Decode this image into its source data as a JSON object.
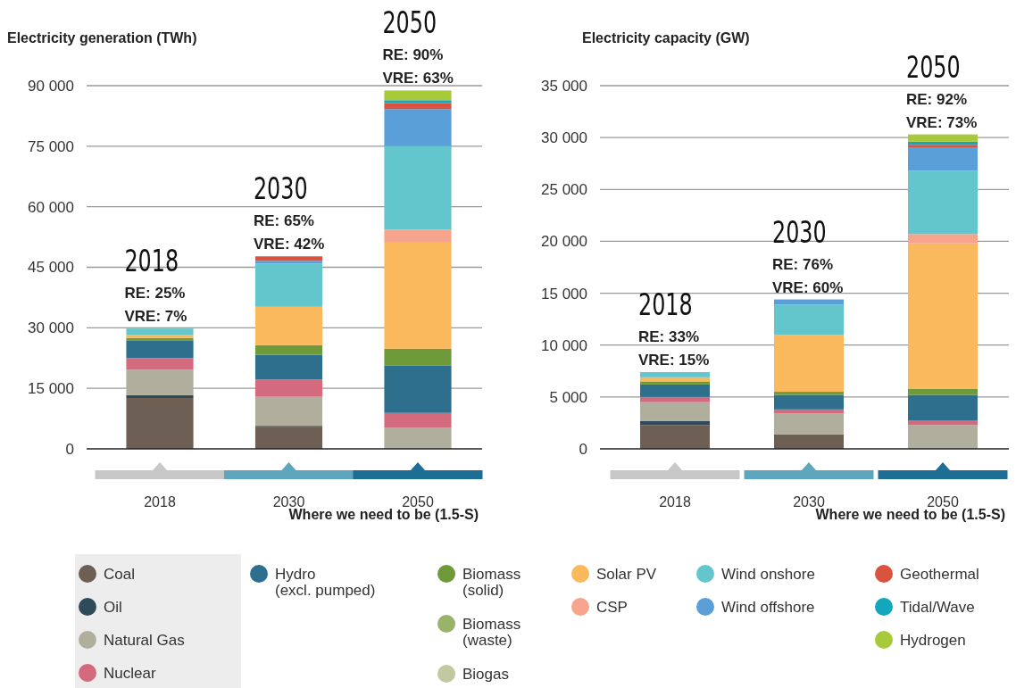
{
  "chart_data": [
    {
      "type": "bar",
      "stacked": true,
      "title": "Electricity generation (TWh)",
      "categories": [
        "2018",
        "2030",
        "2050"
      ],
      "ylim": [
        0,
        90000
      ],
      "yticks": [
        {
          "value": 0,
          "label": "0"
        },
        {
          "value": 15000,
          "label": "15 000"
        },
        {
          "value": 30000,
          "label": "30 000"
        },
        {
          "value": 45000,
          "label": "45 000"
        },
        {
          "value": 60000,
          "label": "60 000"
        },
        {
          "value": 75000,
          "label": "75 000"
        },
        {
          "value": 90000,
          "label": "90 000"
        }
      ],
      "grid": "y",
      "legend": "bottom",
      "series": [
        {
          "name": "Coal",
          "color": "#6e5f55",
          "values": [
            12600,
            5500,
            null
          ]
        },
        {
          "name": "Oil",
          "color": "#2f4a5a",
          "values": [
            700,
            200,
            null
          ]
        },
        {
          "name": "Natural Gas",
          "color": "#b0ae9c",
          "values": [
            6300,
            7200,
            5200
          ]
        },
        {
          "name": "Nuclear",
          "color": "#d46a7e",
          "values": [
            2900,
            4300,
            3700
          ]
        },
        {
          "name": "Hydro (excl. pumped)",
          "color": "#2e6f8e",
          "values": [
            4400,
            6100,
            11800
          ]
        },
        {
          "name": "Biomass (solid)",
          "color": "#6f9a3a",
          "values": [
            600,
            2400,
            4100
          ]
        },
        {
          "name": "Biomass (waste)",
          "color": "#9ab36a",
          "values": [
            null,
            null,
            null
          ]
        },
        {
          "name": "Biogas",
          "color": "#c2c8a0",
          "values": [
            null,
            null,
            null
          ]
        },
        {
          "name": "Solar PV",
          "color": "#fbb95e",
          "values": [
            700,
            9500,
            26300
          ]
        },
        {
          "name": "CSP",
          "color": "#f6a58c",
          "values": [
            null,
            null,
            3200
          ]
        },
        {
          "name": "Wind onshore",
          "color": "#63c6cc",
          "values": [
            1600,
            10700,
            20700
          ]
        },
        {
          "name": "Wind offshore",
          "color": "#5a9fd8",
          "values": [
            null,
            700,
            9200
          ]
        },
        {
          "name": "Geothermal",
          "color": "#d9533e",
          "values": [
            null,
            1100,
            1500
          ]
        },
        {
          "name": "Tidal/Wave",
          "color": "#12a7bd",
          "values": [
            null,
            null,
            700
          ]
        },
        {
          "name": "Hydrogen",
          "color": "#a8c93a",
          "values": [
            null,
            null,
            2400
          ]
        }
      ],
      "annotations": [
        {
          "text": "2018",
          "x": "2018",
          "y": 29800
        },
        {
          "text": "RE: 25%",
          "x": "2018",
          "y": 29800
        },
        {
          "text": "VRE: 7%",
          "x": "2018",
          "y": 29800
        },
        {
          "text": "2030",
          "x": "2030",
          "y": 47700
        },
        {
          "text": "RE: 65%",
          "x": "2030",
          "y": 47700
        },
        {
          "text": "VRE: 42%",
          "x": "2030",
          "y": 47700
        },
        {
          "text": "2050",
          "x": "2050",
          "y": 88800
        },
        {
          "text": "RE: 90%",
          "x": "2050",
          "y": 88800
        },
        {
          "text": "VRE: 63%",
          "x": "2050",
          "y": 88800
        },
        "Where we need to be (1.5-S)"
      ]
    },
    {
      "type": "bar",
      "stacked": true,
      "title": "Electricity capacity (GW)",
      "categories": [
        "2018",
        "2030",
        "2050"
      ],
      "ylim": [
        0,
        35000
      ],
      "yticks": [
        {
          "value": 0,
          "label": "0"
        },
        {
          "value": 5000,
          "label": "5 000"
        },
        {
          "value": 10000,
          "label": "10 000"
        },
        {
          "value": 15000,
          "label": "15 000"
        },
        {
          "value": 20000,
          "label": "20 000"
        },
        {
          "value": 25000,
          "label": "25 000"
        },
        {
          "value": 30000,
          "label": "30 000"
        },
        {
          "value": 35000,
          "label": "35 000"
        }
      ],
      "grid": "y",
      "series": [
        {
          "color": "#6e5f55",
          "values": [
            2300,
            1400,
            null
          ]
        },
        {
          "color": "#2f4a5a",
          "values": [
            400,
            null,
            null
          ]
        },
        {
          "color": "#b0ae9c",
          "values": [
            1800,
            2000,
            2300
          ]
        },
        {
          "color": "#d46a7e",
          "values": [
            500,
            400,
            400
          ]
        },
        {
          "color": "#2e6f8e",
          "values": [
            1200,
            1400,
            2500
          ]
        },
        {
          "color": "#6f9a3a",
          "values": [
            300,
            300,
            600
          ]
        },
        {
          "color": "#fbb95e",
          "values": [
            400,
            5500,
            14000
          ]
        },
        {
          "color": "#f6a58c",
          "values": [
            null,
            null,
            900
          ]
        },
        {
          "color": "#63c6cc",
          "values": [
            500,
            2900,
            6100
          ]
        },
        {
          "color": "#5a9fd8",
          "values": [
            null,
            500,
            2200
          ]
        },
        {
          "color": "#d9533e",
          "values": [
            null,
            null,
            300
          ]
        },
        {
          "color": "#12a7bd",
          "values": [
            null,
            null,
            300
          ]
        },
        {
          "color": "#a8c93a",
          "values": [
            null,
            null,
            700
          ]
        }
      ],
      "annotations": [
        {
          "text": "2018",
          "x": "2018",
          "y": 7400
        },
        {
          "text": "RE: 33%",
          "x": "2018",
          "y": 7400
        },
        {
          "text": "VRE: 15%",
          "x": "2018",
          "y": 7400
        },
        {
          "text": "2030",
          "x": "2030",
          "y": 14400
        },
        {
          "text": "RE: 76%",
          "x": "2030",
          "y": 14400
        },
        {
          "text": "VRE: 60%",
          "x": "2030",
          "y": 14400
        },
        {
          "text": "2050",
          "x": "2050",
          "y": 30300
        },
        {
          "text": "RE: 92%",
          "x": "2050",
          "y": 30300
        },
        {
          "text": "VRE: 73%",
          "x": "2050",
          "y": 30300
        },
        "Where we need to be (1.5-S)"
      ]
    }
  ]
}
